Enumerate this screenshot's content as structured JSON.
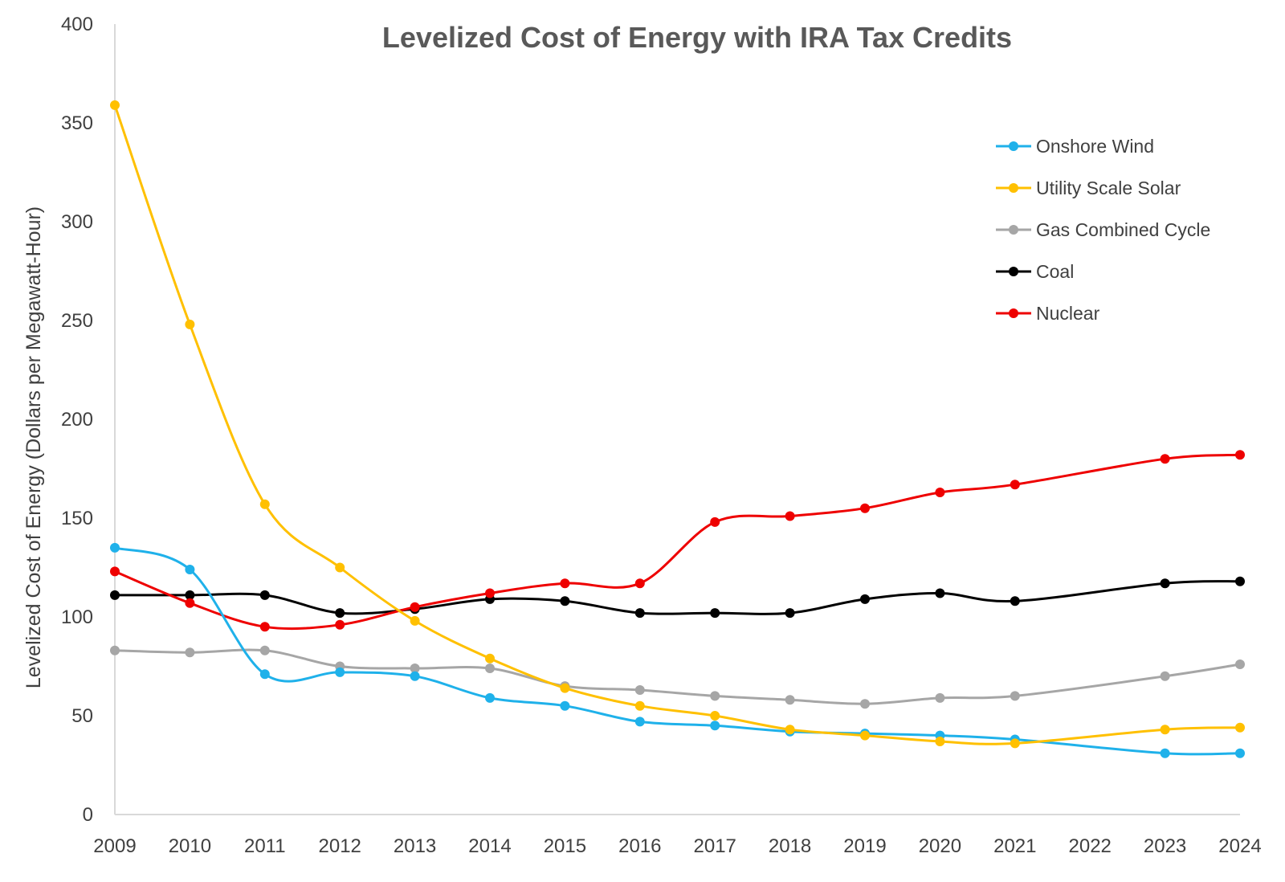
{
  "chart_data": {
    "type": "line",
    "title": "Levelized Cost of Energy with IRA Tax Credits",
    "xlabel": "",
    "ylabel": "Levelized Cost of Energy (Dollars per Megawatt-Hour)",
    "ylim": [
      0,
      400
    ],
    "yticks": [
      0,
      50,
      100,
      150,
      200,
      250,
      300,
      350,
      400
    ],
    "x_tick_labels": [
      "2009",
      "2010",
      "2011",
      "2012",
      "2013",
      "2014",
      "2015",
      "2016",
      "2017",
      "2018",
      "2019",
      "2020",
      "2021",
      "2022",
      "2023",
      "2024"
    ],
    "grid": false,
    "legend_position": "top-right",
    "smooth": true,
    "series": [
      {
        "name": "Onshore Wind",
        "color": "#1fb1ea",
        "x": [
          2009,
          2010,
          2011,
          2012,
          2013,
          2014,
          2015,
          2016,
          2017,
          2018,
          2019,
          2020,
          2021,
          2023,
          2024
        ],
        "values": [
          135,
          124,
          71,
          72,
          70,
          59,
          55,
          47,
          45,
          42,
          41,
          40,
          38,
          31,
          31
        ]
      },
      {
        "name": "Utility Scale Solar",
        "color": "#ffc000",
        "x": [
          2009,
          2010,
          2011,
          2012,
          2013,
          2014,
          2015,
          2016,
          2017,
          2018,
          2019,
          2020,
          2021,
          2023,
          2024
        ],
        "values": [
          359,
          248,
          157,
          125,
          98,
          79,
          64,
          55,
          50,
          43,
          40,
          37,
          36,
          43,
          44
        ]
      },
      {
        "name": "Gas Combined Cycle",
        "color": "#a6a6a6",
        "x": [
          2009,
          2010,
          2011,
          2012,
          2013,
          2014,
          2015,
          2016,
          2017,
          2018,
          2019,
          2020,
          2021,
          2023,
          2024
        ],
        "values": [
          83,
          82,
          83,
          75,
          74,
          74,
          65,
          63,
          60,
          58,
          56,
          59,
          60,
          70,
          76
        ]
      },
      {
        "name": "Coal",
        "color": "#000000",
        "x": [
          2009,
          2010,
          2011,
          2012,
          2013,
          2014,
          2015,
          2016,
          2017,
          2018,
          2019,
          2020,
          2021,
          2023,
          2024
        ],
        "values": [
          111,
          111,
          111,
          102,
          104,
          109,
          108,
          102,
          102,
          102,
          109,
          112,
          108,
          117,
          118
        ]
      },
      {
        "name": "Nuclear",
        "color": "#ee0000",
        "x": [
          2009,
          2010,
          2011,
          2012,
          2013,
          2014,
          2015,
          2016,
          2017,
          2018,
          2019,
          2020,
          2021,
          2023,
          2024
        ],
        "values": [
          123,
          107,
          95,
          96,
          105,
          112,
          117,
          117,
          148,
          151,
          155,
          163,
          167,
          180,
          182
        ]
      }
    ]
  }
}
